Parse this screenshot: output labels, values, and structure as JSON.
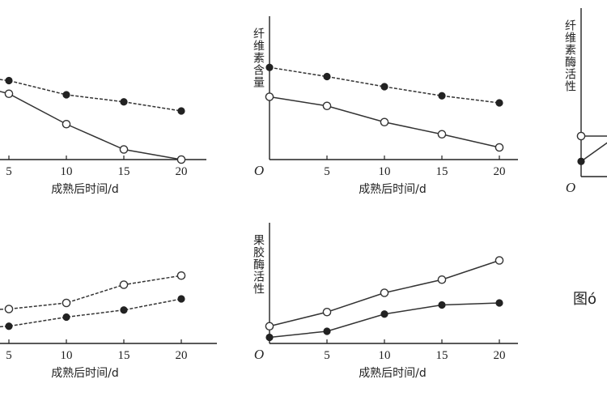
{
  "figure": {
    "caption": "图ó"
  },
  "chart_data": [
    {
      "id": "top-left",
      "type": "line",
      "title": "",
      "xlabel": "成熟后时间/d",
      "ylabel": "",
      "origin_label": "",
      "x": [
        0,
        5,
        10,
        15,
        20
      ],
      "xticks": [
        "5",
        "10",
        "15",
        "20"
      ],
      "xlim": [
        0,
        20
      ],
      "ylim": [
        0,
        100
      ],
      "series": [
        {
          "marker": "filled",
          "style": "dashed",
          "values": [
            85,
            78,
            64,
            57,
            48
          ]
        },
        {
          "marker": "open",
          "style": "solid",
          "values": [
            80,
            65,
            35,
            10,
            0
          ]
        }
      ]
    },
    {
      "id": "top-middle",
      "type": "line",
      "title": "",
      "xlabel": "成熟后时间/d",
      "ylabel": "纤维素含量",
      "origin_label": "O",
      "x": [
        0,
        5,
        10,
        15,
        20
      ],
      "xticks": [
        "5",
        "10",
        "15",
        "20"
      ],
      "xlim": [
        0,
        20
      ],
      "ylim": [
        0,
        100
      ],
      "series": [
        {
          "marker": "filled",
          "style": "dashed",
          "values": [
            91,
            82,
            72,
            63,
            56
          ]
        },
        {
          "marker": "open",
          "style": "solid",
          "values": [
            62,
            53,
            37,
            25,
            12
          ]
        }
      ]
    },
    {
      "id": "top-right",
      "type": "line",
      "title": "",
      "xlabel": "",
      "ylabel": "纤维素酶活性",
      "origin_label": "O",
      "x": [
        0
      ],
      "xticks": [],
      "xlim": [
        0,
        20
      ],
      "ylim": [
        0,
        100
      ],
      "series": [
        {
          "marker": "open",
          "style": "solid",
          "values": [
            40
          ]
        },
        {
          "marker": "filled",
          "style": "solid",
          "values": [
            15
          ]
        }
      ]
    },
    {
      "id": "bottom-left",
      "type": "line",
      "title": "",
      "xlabel": "成熟后时间/d",
      "ylabel": "",
      "origin_label": "",
      "x": [
        0,
        5,
        10,
        15,
        20
      ],
      "xticks": [
        "5",
        "10",
        "15",
        "20"
      ],
      "xlim": [
        0,
        20
      ],
      "ylim": [
        0,
        100
      ],
      "series": [
        {
          "marker": "open",
          "style": "dashed",
          "values": [
            32,
            34,
            40,
            58,
            67
          ]
        },
        {
          "marker": "filled",
          "style": "dashed",
          "values": [
            14,
            17,
            26,
            33,
            44
          ]
        }
      ]
    },
    {
      "id": "bottom-middle",
      "type": "line",
      "title": "",
      "xlabel": "成熟后时间/d",
      "ylabel": "果胶酶活性",
      "origin_label": "O",
      "x": [
        0,
        5,
        10,
        15,
        20
      ],
      "xticks": [
        "5",
        "10",
        "15",
        "20"
      ],
      "xlim": [
        0,
        20
      ],
      "ylim": [
        0,
        100
      ],
      "series": [
        {
          "marker": "open",
          "style": "solid",
          "values": [
            17,
            31,
            50,
            63,
            82
          ]
        },
        {
          "marker": "filled",
          "style": "solid",
          "values": [
            6,
            12,
            29,
            38,
            40
          ]
        }
      ]
    }
  ]
}
